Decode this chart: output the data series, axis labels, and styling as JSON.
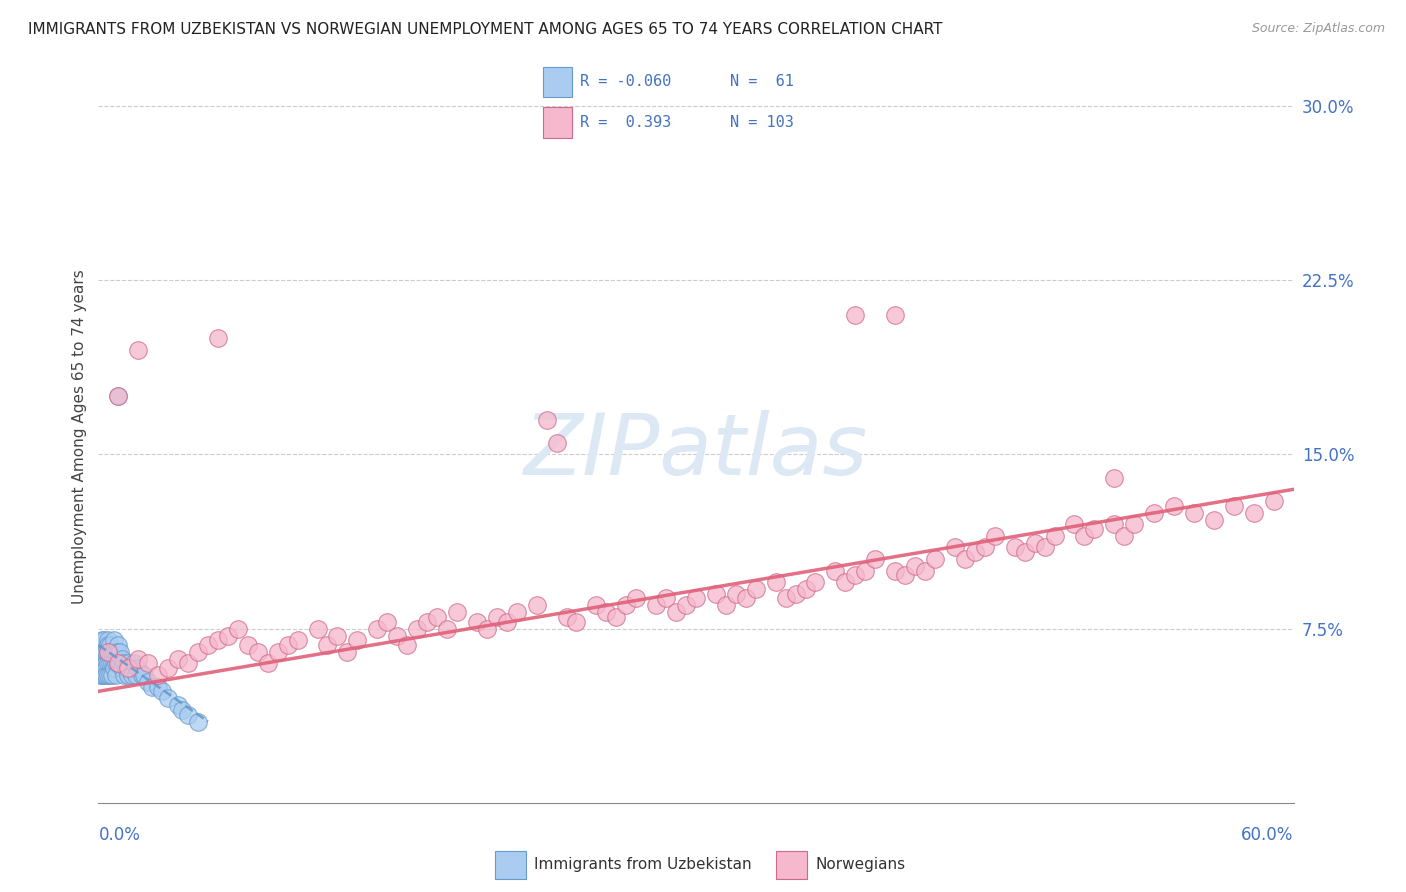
{
  "title": "IMMIGRANTS FROM UZBEKISTAN VS NORWEGIAN UNEMPLOYMENT AMONG AGES 65 TO 74 YEARS CORRELATION CHART",
  "source": "Source: ZipAtlas.com",
  "ylabel": "Unemployment Among Ages 65 to 74 years",
  "ytick_vals": [
    0.075,
    0.15,
    0.225,
    0.3
  ],
  "ytick_labels": [
    "7.5%",
    "15.0%",
    "22.5%",
    "30.0%"
  ],
  "xlim": [
    0.0,
    0.6
  ],
  "ylim": [
    0.0,
    0.315
  ],
  "color_blue_fill": "#aaccf0",
  "color_blue_edge": "#6699cc",
  "color_pink_fill": "#f5b8cc",
  "color_pink_edge": "#d06888",
  "color_line_blue": "#6699cc",
  "color_line_pink": "#e0607a",
  "watermark_color": "#dde8f5",
  "legend_r1": "R = -0.060",
  "legend_n1": "N =  61",
  "legend_r2": "R =  0.393",
  "legend_n2": "N = 103",
  "blue_x": [
    0.001,
    0.001,
    0.002,
    0.002,
    0.002,
    0.003,
    0.003,
    0.003,
    0.003,
    0.004,
    0.004,
    0.004,
    0.004,
    0.005,
    0.005,
    0.005,
    0.005,
    0.005,
    0.006,
    0.006,
    0.006,
    0.006,
    0.007,
    0.007,
    0.007,
    0.008,
    0.008,
    0.008,
    0.008,
    0.009,
    0.009,
    0.009,
    0.01,
    0.01,
    0.01,
    0.011,
    0.011,
    0.012,
    0.012,
    0.013,
    0.013,
    0.014,
    0.015,
    0.015,
    0.016,
    0.017,
    0.018,
    0.019,
    0.02,
    0.022,
    0.023,
    0.025,
    0.027,
    0.03,
    0.032,
    0.035,
    0.04,
    0.042,
    0.045,
    0.05,
    0.01
  ],
  "blue_y": [
    0.06,
    0.055,
    0.065,
    0.07,
    0.055,
    0.06,
    0.065,
    0.07,
    0.055,
    0.06,
    0.065,
    0.058,
    0.055,
    0.065,
    0.07,
    0.06,
    0.055,
    0.068,
    0.065,
    0.06,
    0.055,
    0.068,
    0.065,
    0.06,
    0.055,
    0.07,
    0.065,
    0.06,
    0.058,
    0.065,
    0.06,
    0.055,
    0.068,
    0.065,
    0.06,
    0.065,
    0.06,
    0.062,
    0.058,
    0.06,
    0.055,
    0.058,
    0.06,
    0.055,
    0.058,
    0.055,
    0.06,
    0.055,
    0.058,
    0.055,
    0.055,
    0.052,
    0.05,
    0.05,
    0.048,
    0.045,
    0.042,
    0.04,
    0.038,
    0.035,
    0.175
  ],
  "pink_x": [
    0.005,
    0.01,
    0.015,
    0.02,
    0.025,
    0.03,
    0.035,
    0.04,
    0.045,
    0.05,
    0.055,
    0.06,
    0.065,
    0.07,
    0.075,
    0.08,
    0.085,
    0.09,
    0.095,
    0.1,
    0.11,
    0.115,
    0.12,
    0.125,
    0.13,
    0.14,
    0.145,
    0.15,
    0.155,
    0.16,
    0.165,
    0.17,
    0.175,
    0.18,
    0.19,
    0.195,
    0.2,
    0.205,
    0.21,
    0.22,
    0.225,
    0.23,
    0.235,
    0.24,
    0.25,
    0.255,
    0.26,
    0.265,
    0.27,
    0.28,
    0.285,
    0.29,
    0.295,
    0.3,
    0.31,
    0.315,
    0.32,
    0.325,
    0.33,
    0.34,
    0.345,
    0.35,
    0.355,
    0.36,
    0.37,
    0.375,
    0.38,
    0.385,
    0.39,
    0.4,
    0.405,
    0.41,
    0.415,
    0.42,
    0.43,
    0.435,
    0.44,
    0.445,
    0.45,
    0.46,
    0.465,
    0.47,
    0.475,
    0.48,
    0.49,
    0.495,
    0.5,
    0.51,
    0.515,
    0.52,
    0.53,
    0.54,
    0.55,
    0.56,
    0.57,
    0.58,
    0.59,
    0.01,
    0.02,
    0.06,
    0.38,
    0.4,
    0.51
  ],
  "pink_y": [
    0.065,
    0.06,
    0.058,
    0.062,
    0.06,
    0.055,
    0.058,
    0.062,
    0.06,
    0.065,
    0.068,
    0.07,
    0.072,
    0.075,
    0.068,
    0.065,
    0.06,
    0.065,
    0.068,
    0.07,
    0.075,
    0.068,
    0.072,
    0.065,
    0.07,
    0.075,
    0.078,
    0.072,
    0.068,
    0.075,
    0.078,
    0.08,
    0.075,
    0.082,
    0.078,
    0.075,
    0.08,
    0.078,
    0.082,
    0.085,
    0.165,
    0.155,
    0.08,
    0.078,
    0.085,
    0.082,
    0.08,
    0.085,
    0.088,
    0.085,
    0.088,
    0.082,
    0.085,
    0.088,
    0.09,
    0.085,
    0.09,
    0.088,
    0.092,
    0.095,
    0.088,
    0.09,
    0.092,
    0.095,
    0.1,
    0.095,
    0.098,
    0.1,
    0.105,
    0.1,
    0.098,
    0.102,
    0.1,
    0.105,
    0.11,
    0.105,
    0.108,
    0.11,
    0.115,
    0.11,
    0.108,
    0.112,
    0.11,
    0.115,
    0.12,
    0.115,
    0.118,
    0.12,
    0.115,
    0.12,
    0.125,
    0.128,
    0.125,
    0.122,
    0.128,
    0.125,
    0.13,
    0.175,
    0.195,
    0.2,
    0.21,
    0.21,
    0.14
  ],
  "blue_line_x": [
    0.0,
    0.055
  ],
  "blue_line_y": [
    0.068,
    0.035
  ],
  "pink_line_x": [
    0.0,
    0.6
  ],
  "pink_line_y": [
    0.048,
    0.135
  ]
}
